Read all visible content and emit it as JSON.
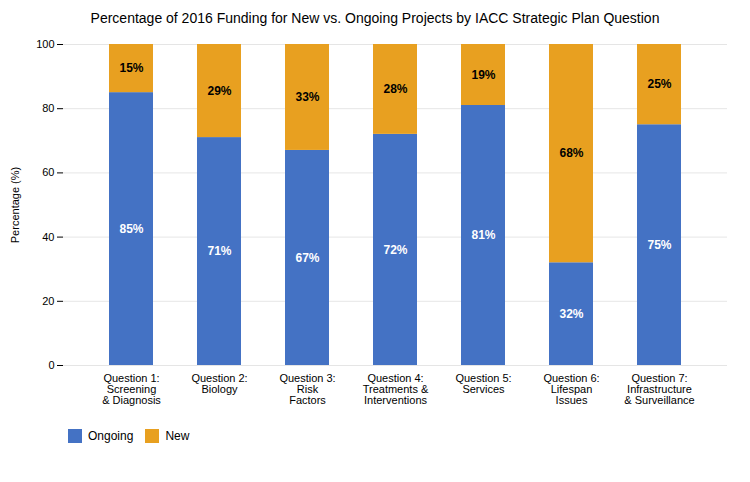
{
  "chart_data": {
    "type": "bar",
    "title": "Percentage of 2016 Funding for New vs. Ongoing Projects by IACC Strategic Plan Question",
    "categories": [
      "Question 1:\nScreening\n& Diagnosis",
      "Question 2:\nBiology",
      "Question 3:\nRisk\nFactors",
      "Question 4:\nTreatments &\nInterventions",
      "Question 5:\nServices",
      "Question 6:\nLifespan\nIssues",
      "Question 7:\nInfrastructure\n& Surveillance"
    ],
    "series": [
      {
        "name": "Ongoing",
        "color": "#4472C4",
        "values": [
          85,
          71,
          67,
          72,
          81,
          32,
          75
        ],
        "value_labels": [
          "85%",
          "71%",
          "67%",
          "72%",
          "81%",
          "32%",
          "75%"
        ]
      },
      {
        "name": "New",
        "color": "#E8A020",
        "values": [
          15,
          29,
          33,
          28,
          19,
          68,
          25
        ],
        "value_labels": [
          "15%",
          "29%",
          "33%",
          "28%",
          "19%",
          "68%",
          "25%"
        ]
      }
    ],
    "ylabel": "Percentage (%)",
    "ylim": [
      0,
      100
    ],
    "yticks": [
      0,
      20,
      40,
      60,
      80,
      100
    ],
    "stacked": true,
    "data_labels": true,
    "grid": true,
    "legend": "bottom"
  }
}
